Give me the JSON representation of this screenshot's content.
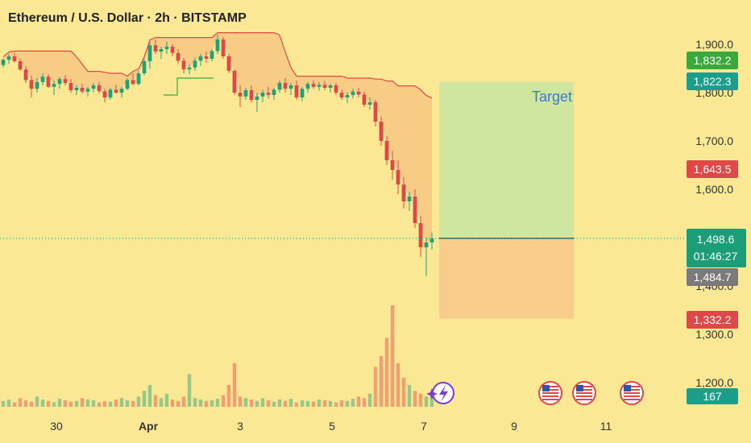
{
  "header": {
    "title": "Ethereum / U.S. Dollar · 2h · BITSTAMP"
  },
  "colors": {
    "background": "#fbe894",
    "up": "#22a07a",
    "down": "#e04848",
    "profit_zone": "#cfe6a0",
    "loss_zone": "#f8cd8c",
    "band_fill": "#f6c884",
    "band_line": "#e04848",
    "band_support": "#3aa83a",
    "last_price": "#1b9e77",
    "bid_tag": "#7a7a7a",
    "target_text": "#3a78d4"
  },
  "chart_data": {
    "type": "candlestick",
    "title": "Ethereum / U.S. Dollar · 2h · BITSTAMP",
    "y_axis": {
      "ticks": [
        "1,900.0",
        "1,800.0",
        "1,700.0",
        "1,600.0",
        "1,400.0",
        "1,300.0",
        "1,200.0"
      ],
      "tick_values": [
        1900,
        1800,
        1700,
        1600,
        1400,
        1300,
        1200
      ],
      "range": [
        1150,
        1950
      ]
    },
    "x_axis": {
      "labels": [
        "30",
        "Apr",
        "3",
        "5",
        "7",
        "9",
        "11"
      ]
    },
    "price_tags": [
      {
        "label": "1,832.2",
        "value": 1832.2,
        "color": "#3aa83a"
      },
      {
        "label": "1,822.3",
        "value": 1822.3,
        "color": "#1b9e8c"
      },
      {
        "label": "1,643.5",
        "value": 1643.5,
        "color": "#e04848"
      },
      {
        "label": "1,498.6",
        "value": 1498.6,
        "color": "#1b9e77"
      },
      {
        "label": "1,484.7",
        "value": 1484.7,
        "color": "#7a7a7a"
      },
      {
        "label": "1,332.2",
        "value": 1332.2,
        "color": "#e04848"
      }
    ],
    "countdown": "01:46:27",
    "volume_tag": "167",
    "position": {
      "type": "long",
      "entry": 1498.6,
      "target": 1822.3,
      "stop": 1332.2,
      "target_label": "Target"
    },
    "ohlc": [
      [
        1857,
        1870,
        1852,
        1868
      ],
      [
        1868,
        1880,
        1860,
        1875
      ],
      [
        1875,
        1882,
        1862,
        1865
      ],
      [
        1865,
        1870,
        1845,
        1848
      ],
      [
        1848,
        1855,
        1820,
        1826
      ],
      [
        1826,
        1835,
        1790,
        1808
      ],
      [
        1808,
        1830,
        1800,
        1822
      ],
      [
        1822,
        1840,
        1815,
        1833
      ],
      [
        1833,
        1838,
        1810,
        1812
      ],
      [
        1812,
        1825,
        1795,
        1818
      ],
      [
        1818,
        1832,
        1808,
        1828
      ],
      [
        1828,
        1836,
        1815,
        1820
      ],
      [
        1820,
        1828,
        1800,
        1805
      ],
      [
        1805,
        1815,
        1795,
        1810
      ],
      [
        1810,
        1818,
        1798,
        1802
      ],
      [
        1802,
        1812,
        1792,
        1808
      ],
      [
        1808,
        1820,
        1800,
        1815
      ],
      [
        1815,
        1822,
        1798,
        1803
      ],
      [
        1803,
        1808,
        1780,
        1790
      ],
      [
        1790,
        1810,
        1785,
        1806
      ],
      [
        1806,
        1816,
        1798,
        1800
      ],
      [
        1800,
        1812,
        1790,
        1808
      ],
      [
        1808,
        1830,
        1805,
        1826
      ],
      [
        1826,
        1840,
        1815,
        1818
      ],
      [
        1818,
        1845,
        1815,
        1840
      ],
      [
        1840,
        1870,
        1835,
        1865
      ],
      [
        1865,
        1905,
        1850,
        1898
      ],
      [
        1898,
        1910,
        1880,
        1885
      ],
      [
        1885,
        1895,
        1870,
        1890
      ],
      [
        1890,
        1905,
        1880,
        1895
      ],
      [
        1895,
        1900,
        1875,
        1882
      ],
      [
        1882,
        1890,
        1860,
        1866
      ],
      [
        1866,
        1872,
        1840,
        1848
      ],
      [
        1848,
        1858,
        1838,
        1852
      ],
      [
        1852,
        1872,
        1845,
        1866
      ],
      [
        1866,
        1880,
        1855,
        1875
      ],
      [
        1875,
        1885,
        1862,
        1870
      ],
      [
        1870,
        1890,
        1865,
        1886
      ],
      [
        1886,
        1920,
        1880,
        1910
      ],
      [
        1910,
        1915,
        1870,
        1875
      ],
      [
        1875,
        1880,
        1840,
        1845
      ],
      [
        1845,
        1848,
        1795,
        1800
      ],
      [
        1800,
        1815,
        1770,
        1792
      ],
      [
        1792,
        1810,
        1785,
        1805
      ],
      [
        1805,
        1815,
        1780,
        1785
      ],
      [
        1785,
        1800,
        1760,
        1792
      ],
      [
        1792,
        1806,
        1780,
        1800
      ],
      [
        1800,
        1812,
        1788,
        1795
      ],
      [
        1795,
        1810,
        1785,
        1806
      ],
      [
        1806,
        1825,
        1800,
        1820
      ],
      [
        1820,
        1830,
        1800,
        1808
      ],
      [
        1808,
        1820,
        1795,
        1815
      ],
      [
        1815,
        1825,
        1785,
        1790
      ],
      [
        1790,
        1812,
        1782,
        1808
      ],
      [
        1808,
        1822,
        1800,
        1818
      ],
      [
        1818,
        1826,
        1808,
        1812
      ],
      [
        1812,
        1822,
        1804,
        1816
      ],
      [
        1816,
        1824,
        1805,
        1810
      ],
      [
        1810,
        1818,
        1800,
        1815
      ],
      [
        1815,
        1820,
        1795,
        1800
      ],
      [
        1800,
        1806,
        1785,
        1790
      ],
      [
        1790,
        1800,
        1778,
        1795
      ],
      [
        1795,
        1808,
        1788,
        1802
      ],
      [
        1802,
        1810,
        1790,
        1796
      ],
      [
        1796,
        1802,
        1770,
        1775
      ],
      [
        1775,
        1790,
        1765,
        1780
      ],
      [
        1780,
        1785,
        1730,
        1740
      ],
      [
        1740,
        1750,
        1690,
        1700
      ],
      [
        1700,
        1710,
        1650,
        1660
      ],
      [
        1660,
        1680,
        1620,
        1640
      ],
      [
        1640,
        1660,
        1590,
        1610
      ],
      [
        1610,
        1625,
        1560,
        1575
      ],
      [
        1575,
        1595,
        1555,
        1585
      ],
      [
        1585,
        1600,
        1520,
        1530
      ],
      [
        1530,
        1545,
        1460,
        1480
      ],
      [
        1480,
        1500,
        1420,
        1490
      ],
      [
        1490,
        1510,
        1475,
        1498
      ]
    ],
    "volume": [
      8,
      10,
      6,
      12,
      9,
      7,
      14,
      10,
      8,
      6,
      11,
      9,
      7,
      8,
      12,
      10,
      9,
      6,
      8,
      7,
      10,
      12,
      9,
      8,
      14,
      22,
      30,
      16,
      12,
      18,
      10,
      8,
      14,
      45,
      12,
      10,
      8,
      9,
      11,
      16,
      30,
      60,
      14,
      12,
      10,
      8,
      12,
      9,
      7,
      10,
      8,
      11,
      6,
      9,
      8,
      7,
      10,
      9,
      8,
      6,
      9,
      8,
      11,
      14,
      12,
      18,
      55,
      70,
      95,
      140,
      60,
      40,
      30,
      22,
      18,
      14,
      16
    ]
  }
}
